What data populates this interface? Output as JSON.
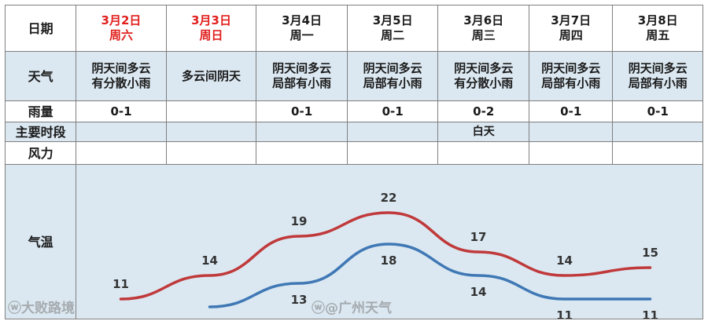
{
  "header": {
    "date_label": "日期",
    "days": [
      {
        "date": "3月2日",
        "weekday": "周六",
        "weekend": true
      },
      {
        "date": "3月3日",
        "weekday": "周日",
        "weekend": true
      },
      {
        "date": "3月4日",
        "weekday": "周一",
        "weekend": false
      },
      {
        "date": "3月5日",
        "weekday": "周二",
        "weekend": false
      },
      {
        "date": "3月6日",
        "weekday": "周三",
        "weekend": false
      },
      {
        "date": "3月7日",
        "weekday": "周四",
        "weekend": false
      },
      {
        "date": "3月8日",
        "weekday": "周五",
        "weekend": false
      }
    ]
  },
  "rows": {
    "weather_label": "天气",
    "rain_label": "雨量",
    "period_label": "主要时段",
    "wind_label": "风力",
    "temp_label": "气温"
  },
  "weather": [
    [
      "阴天间多云",
      "有分散小雨"
    ],
    [
      "多云间阴天"
    ],
    [
      "阴天间多云",
      "局部有小雨"
    ],
    [
      "阴天间多云",
      "局部有小雨"
    ],
    [
      "阴天间多云",
      "有分散小雨"
    ],
    [
      "阴天间多云",
      "局部有小雨"
    ],
    [
      "阴天间多云",
      "局部有小雨"
    ]
  ],
  "rain": [
    "0-1",
    "",
    "0-1",
    "0-1",
    "0-2",
    "0-1",
    "0-1"
  ],
  "period": [
    "",
    "",
    "",
    "",
    "白天",
    "",
    ""
  ],
  "wind": [
    "",
    "",
    "",
    "",
    "",
    "",
    ""
  ],
  "chart_data": {
    "type": "line",
    "categories": [
      "3月2日",
      "3月3日",
      "3月4日",
      "3月5日",
      "3月6日",
      "3月7日",
      "3月8日"
    ],
    "series": [
      {
        "color": "#c0393b",
        "values": [
          11,
          14,
          19,
          22,
          17,
          14,
          15
        ]
      },
      {
        "color": "#3f78b5",
        "values": [
          null,
          10,
          13,
          18,
          14,
          11,
          11
        ]
      }
    ]
  },
  "watermarks": {
    "left": "大败路境",
    "center": "@广州天气"
  }
}
